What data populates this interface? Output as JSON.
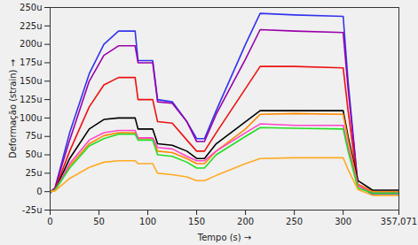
{
  "chart_data": {
    "type": "line",
    "x_label": "Tempo (s)",
    "y_label": "Deformação (strain)",
    "x": [
      0,
      5,
      20,
      40,
      55,
      70,
      87,
      90,
      105,
      110,
      125,
      140,
      150,
      158,
      170,
      200,
      215,
      250,
      300,
      305,
      315,
      330,
      357
    ],
    "xlim": [
      0,
      357.071
    ],
    "xticks": [
      0,
      50,
      100,
      150,
      200,
      250,
      300,
      {
        "value": 357.071,
        "label": "357,071"
      }
    ],
    "ylim": [
      -25,
      250
    ],
    "yticks": [
      {
        "value": -25,
        "label": "-25u"
      },
      0,
      {
        "value": 25,
        "label": "25u"
      },
      {
        "value": 50,
        "label": "50u"
      },
      {
        "value": 75,
        "label": "75u"
      },
      {
        "value": 100,
        "label": "100u"
      },
      {
        "value": 125,
        "label": "125u"
      },
      {
        "value": 150,
        "label": "150u"
      },
      {
        "value": 175,
        "label": "175u"
      },
      {
        "value": 200,
        "label": "200u"
      },
      {
        "value": 225,
        "label": "225u"
      },
      {
        "value": 250,
        "label": "250u"
      }
    ],
    "grid": false,
    "series": [
      {
        "color": "#3333ee",
        "values": [
          -2,
          5,
          80,
          160,
          200,
          218,
          218,
          178,
          178,
          125,
          122,
          95,
          72,
          72,
          110,
          200,
          242,
          240,
          238,
          150,
          10,
          -4,
          -4
        ]
      },
      {
        "color": "#9900aa",
        "values": [
          0,
          5,
          70,
          150,
          185,
          198,
          198,
          175,
          175,
          122,
          120,
          95,
          68,
          68,
          105,
          180,
          220,
          218,
          216,
          140,
          10,
          0,
          0
        ]
      },
      {
        "color": "#ee1111",
        "values": [
          0,
          3,
          55,
          115,
          145,
          155,
          155,
          125,
          125,
          95,
          93,
          70,
          55,
          55,
          80,
          140,
          170,
          170,
          168,
          110,
          10,
          0,
          0
        ]
      },
      {
        "color": "#000000",
        "values": [
          0,
          2,
          45,
          85,
          98,
          100,
          100,
          85,
          85,
          65,
          63,
          55,
          45,
          45,
          65,
          95,
          110,
          110,
          110,
          75,
          15,
          2,
          2
        ]
      },
      {
        "color": "#ff8800",
        "values": [
          0,
          2,
          35,
          65,
          76,
          80,
          80,
          72,
          72,
          55,
          53,
          45,
          38,
          38,
          55,
          85,
          105,
          106,
          105,
          70,
          10,
          0,
          0
        ]
      },
      {
        "color": "#ff44cc",
        "values": [
          0,
          2,
          38,
          70,
          80,
          83,
          83,
          73,
          73,
          60,
          58,
          48,
          42,
          42,
          55,
          80,
          92,
          90,
          90,
          60,
          8,
          -2,
          -2
        ]
      },
      {
        "color": "#22dd22",
        "values": [
          0,
          2,
          32,
          62,
          72,
          78,
          78,
          70,
          70,
          50,
          48,
          40,
          32,
          32,
          50,
          75,
          87,
          86,
          85,
          55,
          5,
          -2,
          -2
        ]
      },
      {
        "color": "#ffaa22",
        "values": [
          0,
          1,
          18,
          33,
          40,
          42,
          42,
          38,
          38,
          25,
          23,
          20,
          15,
          15,
          22,
          38,
          45,
          46,
          46,
          30,
          3,
          -5,
          -5
        ]
      }
    ]
  }
}
